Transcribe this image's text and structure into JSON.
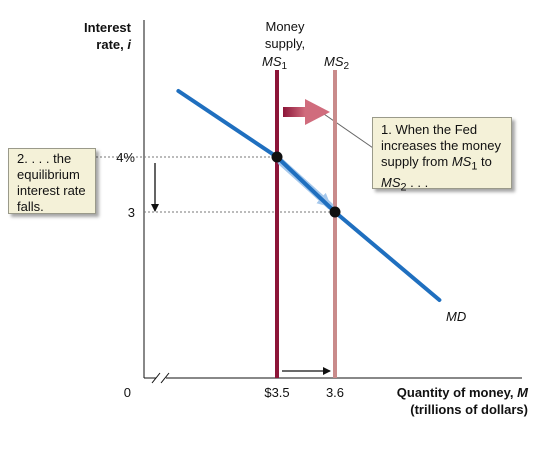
{
  "chart_data": {
    "type": "line",
    "title": "",
    "ylabel": "Interest rate, i",
    "xlabel": "Quantity of money, M (trillions of dollars)",
    "x_ticks": [
      "$3.5",
      "3.6"
    ],
    "y_ticks": [
      "4%",
      "3"
    ],
    "origin_label": "0",
    "series": [
      {
        "name": "Money supply, MS1",
        "type": "vertical",
        "x": 3.5
      },
      {
        "name": "MS2",
        "type": "vertical",
        "x": 3.6
      },
      {
        "name": "MD",
        "type": "line",
        "points": [
          [
            3.33,
            5.2
          ],
          [
            3.5,
            4
          ],
          [
            3.6,
            3
          ],
          [
            3.78,
            1.4
          ]
        ]
      }
    ],
    "equilibria": [
      {
        "x": 3.5,
        "y": 4
      },
      {
        "x": 3.6,
        "y": 3
      }
    ],
    "labels": {
      "ms1_line1": "Money",
      "ms1_line2": "supply,",
      "ms1_symbol": "MS",
      "ms1_sub": "1",
      "ms2_symbol": "MS",
      "ms2_sub": "2",
      "md": "MD",
      "y_line1": "Interest",
      "y_line2": "rate, ",
      "y_italic": "i",
      "x_line1": "Quantity of money, ",
      "x_italic": "M",
      "x_line2": "(trillions of dollars)"
    },
    "annotations": {
      "callout_1": {
        "line1": "1. When the Fed",
        "line2": "increases the money",
        "line3_text": "supply from ",
        "line3_symbol": "MS",
        "line3_sub": "1",
        "line3_end": " to",
        "line4_symbol": "MS",
        "line4_sub": "2",
        "line4_end": " . . ."
      },
      "callout_2": {
        "line1": "2. . . . the",
        "line2": "equilibrium",
        "line3": "interest rate",
        "line4": "falls."
      }
    },
    "colors": {
      "ms1": "#8c1538",
      "ms2": "#c98b8b",
      "md": "#1f6fbf",
      "callout_bg": "#f4f1d8",
      "shift_arrow": "#a8394f"
    }
  }
}
